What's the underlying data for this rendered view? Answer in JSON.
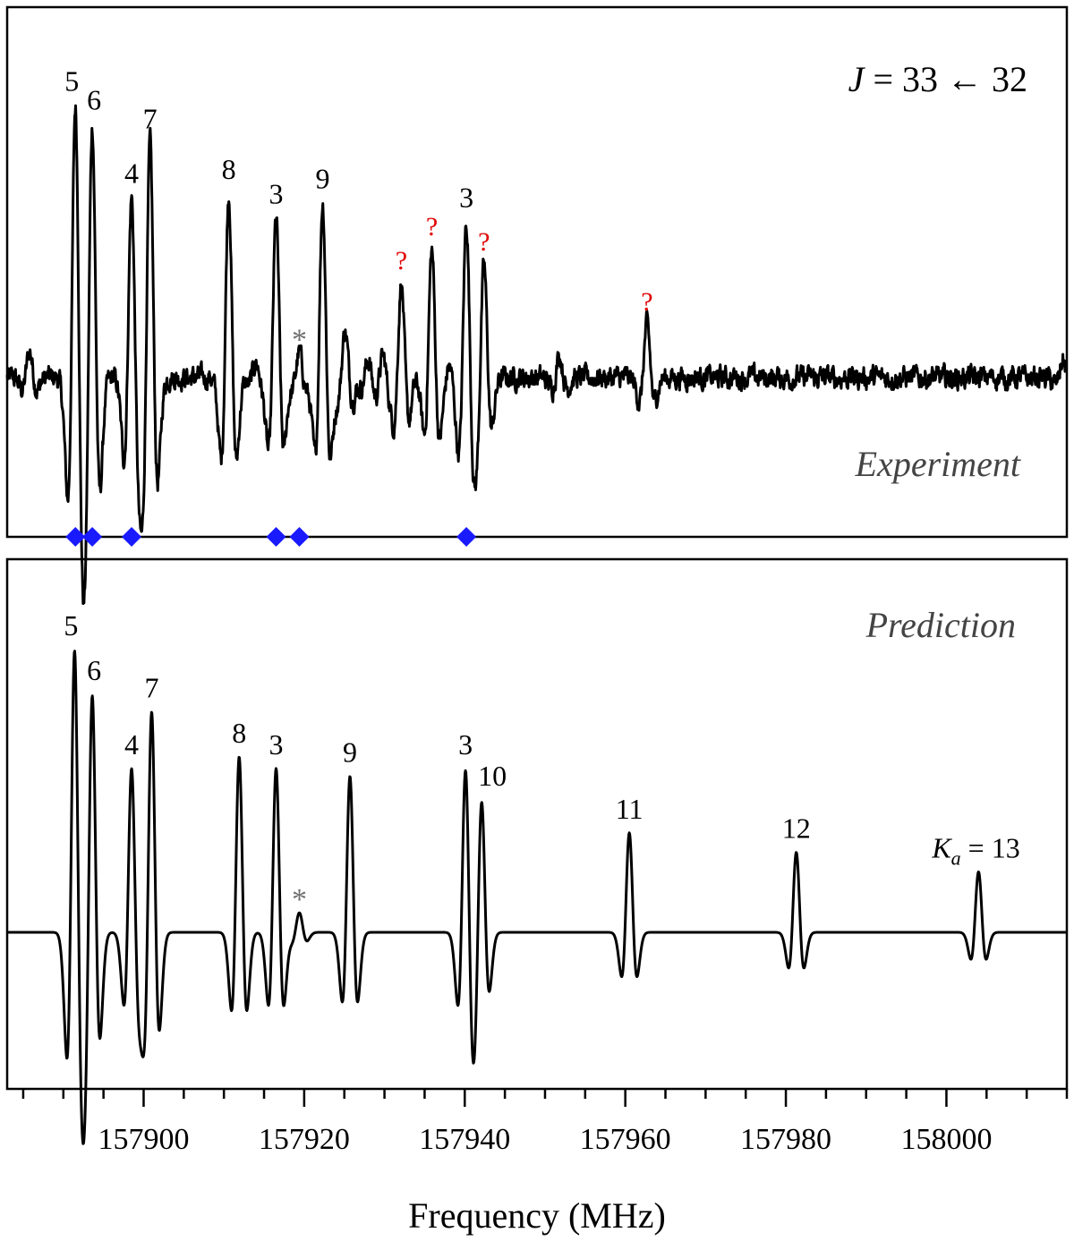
{
  "colors": {
    "trace": "#000000",
    "unknown_mark": "#e00000",
    "asterisk": "#707070",
    "diamond": "#1a1aff",
    "panel_label": "#444444"
  },
  "chart_data": [
    {
      "type": "line",
      "panel": "top",
      "panel_label": "Experiment",
      "title_parts": {
        "J": "J",
        "equation": " = 33 ← 32"
      },
      "x_unit": "MHz",
      "xlim": [
        157883,
        158015
      ],
      "ylim": [
        -1.0,
        1.5
      ],
      "baseline": 0,
      "lineshape": "second-derivative",
      "lines": [
        {
          "x": 157891.5,
          "height": 1.45,
          "label": "5"
        },
        {
          "x": 157893.6,
          "height": 1.35,
          "label": "6"
        },
        {
          "x": 157898.5,
          "height": 0.96,
          "label": "4"
        },
        {
          "x": 157900.8,
          "height": 1.25,
          "label": "7"
        },
        {
          "x": 157910.6,
          "height": 0.98,
          "label": "8"
        },
        {
          "x": 157916.5,
          "height": 0.85,
          "label": "3"
        },
        {
          "x": 157922.3,
          "height": 0.93,
          "label": "9"
        },
        {
          "x": 157919.4,
          "height": 0.13,
          "label": "*"
        },
        {
          "x": 157932.1,
          "height": 0.5,
          "label": "?"
        },
        {
          "x": 157935.9,
          "height": 0.68,
          "label": "?"
        },
        {
          "x": 157940.2,
          "height": 0.83,
          "label": "3"
        },
        {
          "x": 157942.4,
          "height": 0.6,
          "label": "?"
        },
        {
          "x": 157962.7,
          "height": 0.28,
          "label": "?"
        },
        {
          "x": 157885.8,
          "height": 0.14,
          "label": ""
        },
        {
          "x": 157914.0,
          "height": 0.08,
          "label": ""
        },
        {
          "x": 157925.1,
          "height": 0.25,
          "label": ""
        },
        {
          "x": 157928.0,
          "height": 0.1,
          "label": ""
        },
        {
          "x": 157929.8,
          "height": 0.12,
          "label": ""
        },
        {
          "x": 157951.8,
          "height": 0.12,
          "label": ""
        },
        {
          "x": 157938.1,
          "height": 0.07,
          "label": ""
        },
        {
          "x": 158014.5,
          "height": 0.09,
          "label": ""
        }
      ],
      "markers": {
        "type": "diamond",
        "x": [
          157891.5,
          157893.6,
          157898.5,
          157916.5,
          157919.4,
          157940.2
        ]
      }
    },
    {
      "type": "line",
      "panel": "bottom",
      "panel_label": "Prediction",
      "x_unit": "MHz",
      "xlim": [
        157883,
        158015
      ],
      "ylim": [
        -1.0,
        1.5
      ],
      "baseline": 0,
      "lineshape": "second-derivative",
      "lines": [
        {
          "x": 157891.4,
          "height": 1.45,
          "label": "5"
        },
        {
          "x": 157893.6,
          "height": 1.22,
          "label": "6"
        },
        {
          "x": 157898.5,
          "height": 0.84,
          "label": "4"
        },
        {
          "x": 157901.0,
          "height": 1.13,
          "label": "7"
        },
        {
          "x": 157911.9,
          "height": 0.9,
          "label": "8"
        },
        {
          "x": 157916.5,
          "height": 0.84,
          "label": "3"
        },
        {
          "x": 157919.4,
          "height": 0.1,
          "label": "*"
        },
        {
          "x": 157925.7,
          "height": 0.8,
          "label": "9"
        },
        {
          "x": 157940.1,
          "height": 0.84,
          "label": "3"
        },
        {
          "x": 157942.1,
          "height": 0.68,
          "label": "10"
        },
        {
          "x": 157960.5,
          "height": 0.51,
          "label": "11"
        },
        {
          "x": 157981.3,
          "height": 0.41,
          "label": "12"
        },
        {
          "x": 158004.0,
          "height": 0.31,
          "label": "13",
          "label_prefix": "K",
          "label_subscript": "a",
          "label_equals": " = "
        }
      ]
    }
  ],
  "x_axis": {
    "label": "Frequency (MHz)",
    "ticks": [
      "157900",
      "157920",
      "157940",
      "157960",
      "157980",
      "158000"
    ],
    "tick_values": [
      157900,
      157920,
      157940,
      157960,
      157980,
      158000
    ],
    "minor_step": 5
  }
}
